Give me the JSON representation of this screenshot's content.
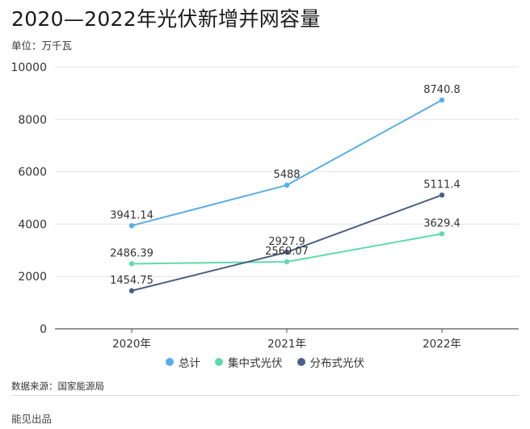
{
  "page": {
    "title": "2020—2022年光伏新增并网容量",
    "unit": "单位：万千瓦",
    "source": "数据来源：国家能源局",
    "brand": "能见出品"
  },
  "chart_data": {
    "type": "line",
    "title": "2020—2022年光伏新增并网容量",
    "categories": [
      "2020年",
      "2021年",
      "2022年"
    ],
    "ylim": [
      0,
      10000
    ],
    "yticks": [
      0,
      2000,
      4000,
      6000,
      8000,
      10000
    ],
    "grid": true,
    "legend_position": "bottom",
    "series": [
      {
        "name": "总计",
        "color": "#5aaee3",
        "values": [
          3941.14,
          5488,
          8740.8
        ],
        "labels": [
          "3941.14",
          "5488",
          "8740.8"
        ]
      },
      {
        "name": "集中式光伏",
        "color": "#5fdbab",
        "values": [
          2486.39,
          2560.07,
          3629.4
        ],
        "labels": [
          "2486.39",
          "2560.07",
          "3629.4"
        ]
      },
      {
        "name": "分布式光伏",
        "color": "#4d5f85",
        "values": [
          1454.75,
          2927.9,
          5111.4
        ],
        "labels": [
          "1454.75",
          "2927.9",
          "5111.4"
        ]
      }
    ]
  }
}
